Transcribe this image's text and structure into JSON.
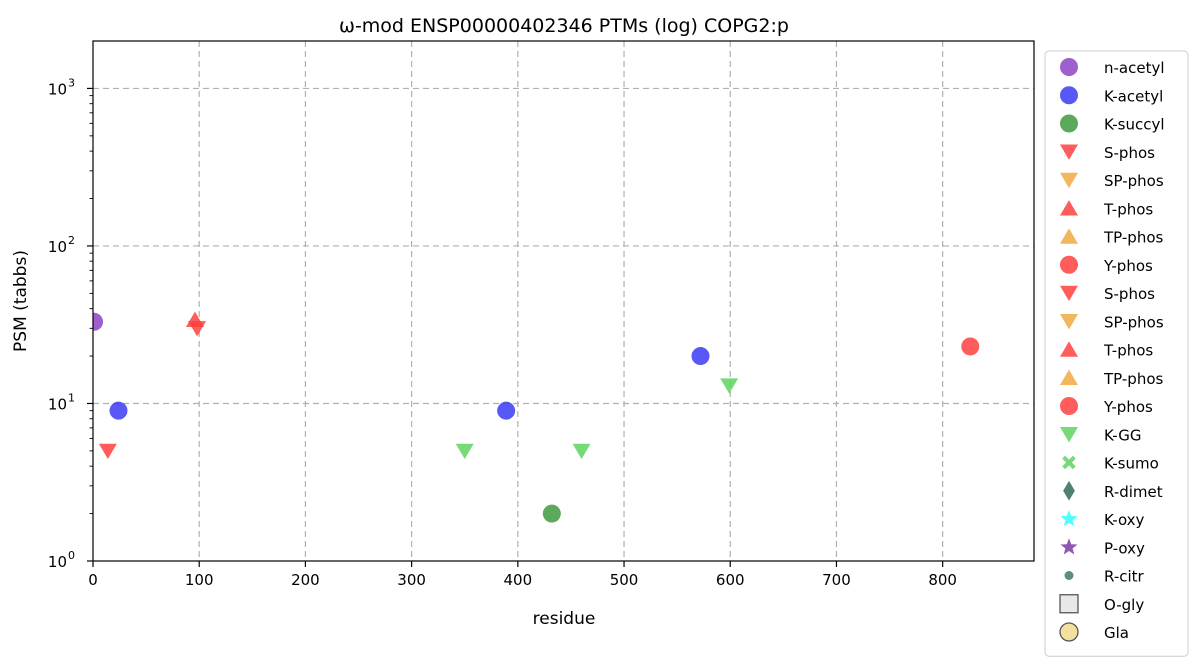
{
  "chart_data": {
    "type": "scatter",
    "title": "ω-mod ENSP00000402346 PTMs (log) COPG2:p",
    "xlabel": "residue",
    "ylabel": "PSM (tabbs)",
    "xlim": [
      0,
      886
    ],
    "ylim": [
      1,
      2000
    ],
    "y_scale": "log",
    "grid": true,
    "legend_position": "outside-right",
    "x_ticks": [
      0,
      100,
      200,
      300,
      400,
      500,
      600,
      700,
      800
    ],
    "y_ticks": [
      {
        "value": 1,
        "base": "10",
        "exp": "0"
      },
      {
        "value": 10,
        "base": "10",
        "exp": "1"
      },
      {
        "value": 100,
        "base": "10",
        "exp": "2"
      },
      {
        "value": 1000,
        "base": "10",
        "exp": "3"
      }
    ],
    "series": [
      {
        "name": "n-acetyl",
        "marker": "circle",
        "color": "#8e44c4",
        "points": [
          [
            1,
            33
          ]
        ]
      },
      {
        "name": "K-acetyl",
        "marker": "circle",
        "color": "#3b3bf5",
        "points": [
          [
            24,
            9
          ],
          [
            389,
            9
          ],
          [
            572,
            20
          ]
        ]
      },
      {
        "name": "K-succyl",
        "marker": "circle",
        "color": "#3e9a3e",
        "points": [
          [
            432,
            2
          ]
        ]
      },
      {
        "name": "S-phos",
        "marker": "triangle-down",
        "color": "#ff4040",
        "points": [
          [
            14,
            5
          ],
          [
            98,
            30
          ]
        ]
      },
      {
        "name": "SP-phos",
        "marker": "triangle-down",
        "color": "#f0aa40",
        "points": []
      },
      {
        "name": "T-phos",
        "marker": "triangle-up",
        "color": "#ff4040",
        "points": [
          [
            96,
            34
          ]
        ]
      },
      {
        "name": "TP-phos",
        "marker": "triangle-up",
        "color": "#f0aa40",
        "points": []
      },
      {
        "name": "Y-phos",
        "marker": "circle",
        "color": "#ff4040",
        "points": [
          [
            826,
            23
          ]
        ]
      },
      {
        "name": "S-phos",
        "marker": "triangle-down",
        "color": "#ff4040",
        "points": []
      },
      {
        "name": "SP-phos",
        "marker": "triangle-down",
        "color": "#f0aa40",
        "points": []
      },
      {
        "name": "T-phos",
        "marker": "triangle-up",
        "color": "#ff4040",
        "points": []
      },
      {
        "name": "TP-phos",
        "marker": "triangle-up",
        "color": "#f0aa40",
        "points": []
      },
      {
        "name": "Y-phos",
        "marker": "circle",
        "color": "#ff4040",
        "points": []
      },
      {
        "name": "K-GG",
        "marker": "triangle-down",
        "color": "#5ed35e",
        "points": [
          [
            350,
            5
          ],
          [
            460,
            5
          ],
          [
            599,
            13
          ]
        ]
      },
      {
        "name": "K-sumo",
        "marker": "x",
        "color": "#5ed35e",
        "points": []
      },
      {
        "name": "R-dimet",
        "marker": "diamond",
        "color": "#2f6b55",
        "points": []
      },
      {
        "name": "K-oxy",
        "marker": "star",
        "color": "#30ffff",
        "points": []
      },
      {
        "name": "P-oxy",
        "marker": "star",
        "color": "#7d3aa6",
        "points": []
      },
      {
        "name": "R-citr",
        "marker": "small-circle",
        "color": "#3f7a6a",
        "points": []
      },
      {
        "name": "O-gly",
        "marker": "square-open",
        "color": "#e8e8e8",
        "points": []
      },
      {
        "name": "Gla",
        "marker": "circle-open",
        "color": "#f3e0a0",
        "points": []
      }
    ]
  }
}
